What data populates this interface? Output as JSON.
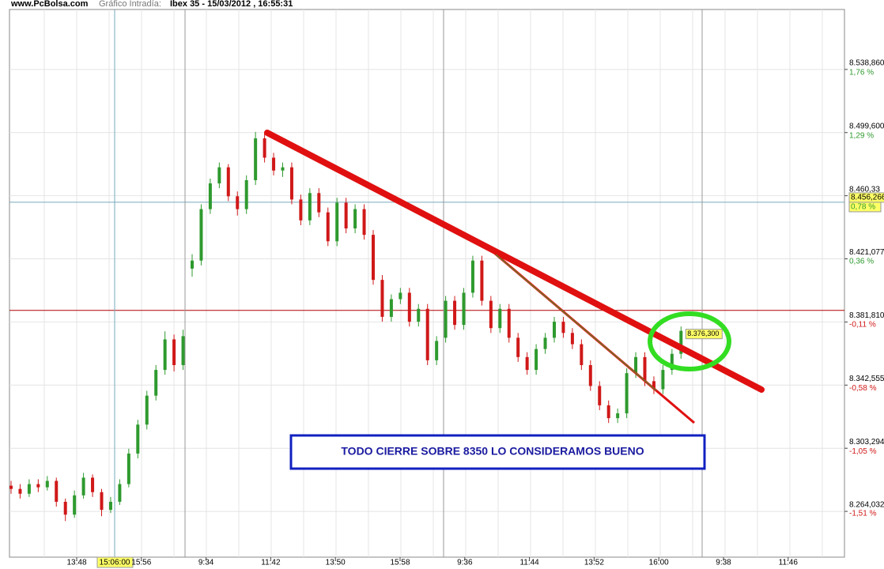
{
  "chart_data": {
    "type": "candlestick",
    "site": "www.PcBolsa.com",
    "subtitle": "Gráfico Intradía:",
    "title": "Ibex 35 - 15/03/2012 , 16:55:31",
    "annotation": "TODO CIERRE SOBRE 8350 LO CONSIDERAMOS BUENO",
    "categories": [
      "13:48",
      "15:56",
      "9:34",
      "11:42",
      "13:50",
      "15:58",
      "9:36",
      "11:44",
      "13:52",
      "16:00",
      "9:38",
      "11:46"
    ],
    "ohlc": [
      [
        8280,
        8283,
        8275,
        8278
      ],
      [
        8278,
        8281,
        8272,
        8275
      ],
      [
        8275,
        8284,
        8273,
        8281
      ],
      [
        8281,
        8284,
        8276,
        8279
      ],
      [
        8279,
        8286,
        8277,
        8283
      ],
      [
        8283,
        8285,
        8267,
        8270
      ],
      [
        8270,
        8272,
        8258,
        8262
      ],
      [
        8262,
        8277,
        8260,
        8274
      ],
      [
        8274,
        8288,
        8272,
        8285
      ],
      [
        8285,
        8287,
        8273,
        8276
      ],
      [
        8276,
        8278,
        8261,
        8265
      ],
      [
        8265,
        8273,
        8263,
        8270
      ],
      [
        8270,
        8284,
        8268,
        8281
      ],
      [
        8281,
        8303,
        8279,
        8300
      ],
      [
        8300,
        8321,
        8297,
        8318
      ],
      [
        8318,
        8339,
        8315,
        8336
      ],
      [
        8336,
        8355,
        8333,
        8352
      ],
      [
        8352,
        8376,
        8349,
        8371
      ],
      [
        8371,
        8374,
        8351,
        8355
      ],
      [
        8355,
        8377,
        8352,
        8373
      ],
      [
        8415,
        8424,
        8410,
        8420
      ],
      [
        8420,
        8455,
        8417,
        8452
      ],
      [
        8452,
        8471,
        8449,
        8468
      ],
      [
        8468,
        8481,
        8465,
        8478
      ],
      [
        8478,
        8480,
        8457,
        8460
      ],
      [
        8460,
        8463,
        8448,
        8452
      ],
      [
        8452,
        8473,
        8449,
        8470
      ],
      [
        8470,
        8500,
        8467,
        8496
      ],
      [
        8496,
        8499,
        8481,
        8484
      ],
      [
        8484,
        8487,
        8473,
        8476
      ],
      [
        8476,
        8481,
        8472,
        8478
      ],
      [
        8478,
        8481,
        8455,
        8458
      ],
      [
        8458,
        8461,
        8442,
        8445
      ],
      [
        8445,
        8465,
        8442,
        8462
      ],
      [
        8462,
        8465,
        8447,
        8450
      ],
      [
        8450,
        8453,
        8429,
        8432
      ],
      [
        8432,
        8459,
        8429,
        8456
      ],
      [
        8456,
        8459,
        8437,
        8440
      ],
      [
        8440,
        8455,
        8437,
        8452
      ],
      [
        8452,
        8455,
        8433,
        8436
      ],
      [
        8436,
        8439,
        8405,
        8408
      ],
      [
        8408,
        8411,
        8382,
        8385
      ],
      [
        8385,
        8399,
        8382,
        8396
      ],
      [
        8396,
        8403,
        8393,
        8400
      ],
      [
        8400,
        8403,
        8379,
        8382
      ],
      [
        8382,
        8393,
        8379,
        8390
      ],
      [
        8390,
        8393,
        8355,
        8358
      ],
      [
        8358,
        8373,
        8355,
        8370
      ],
      [
        8372,
        8398,
        8369,
        8395
      ],
      [
        8395,
        8398,
        8377,
        8380
      ],
      [
        8380,
        8403,
        8377,
        8400
      ],
      [
        8400,
        8423,
        8397,
        8420
      ],
      [
        8420,
        8423,
        8392,
        8395
      ],
      [
        8395,
        8398,
        8375,
        8378
      ],
      [
        8378,
        8393,
        8375,
        8390
      ],
      [
        8390,
        8393,
        8369,
        8372
      ],
      [
        8372,
        8375,
        8357,
        8360
      ],
      [
        8360,
        8363,
        8349,
        8352
      ],
      [
        8352,
        8368,
        8349,
        8365
      ],
      [
        8365,
        8375,
        8362,
        8372
      ],
      [
        8372,
        8385,
        8369,
        8382
      ],
      [
        8382,
        8385,
        8372,
        8375
      ],
      [
        8375,
        8378,
        8365,
        8368
      ],
      [
        8368,
        8371,
        8352,
        8355
      ],
      [
        8355,
        8358,
        8339,
        8342
      ],
      [
        8342,
        8345,
        8327,
        8330
      ],
      [
        8330,
        8333,
        8319,
        8322
      ],
      [
        8322,
        8328,
        8319,
        8325
      ],
      [
        8325,
        8353,
        8322,
        8350
      ],
      [
        8350,
        8363,
        8347,
        8360
      ],
      [
        8360,
        8363,
        8342,
        8345
      ],
      [
        8345,
        8348,
        8337,
        8340
      ],
      [
        8340,
        8355,
        8337,
        8352
      ],
      [
        8352,
        8365,
        8349,
        8362
      ],
      [
        8362,
        8379,
        8359,
        8376.3
      ]
    ],
    "up_color": "#2e9a2e",
    "down_color": "#d01818",
    "ylim": [
      8235.57,
      8576.15
    ],
    "yticks": [
      {
        "value": 8538.86,
        "label": "8.538,860"
      },
      {
        "value": 8499.6,
        "label": "8.499,600"
      },
      {
        "value": 8460.33,
        "label": "8.460,33"
      },
      {
        "value": 8421.077,
        "label": "8.421,077"
      },
      {
        "value": 8381.81,
        "label": "8.381,810"
      },
      {
        "value": 8342.555,
        "label": "8.342,555"
      },
      {
        "value": 8303.294,
        "label": "8.303,294"
      },
      {
        "value": 8264.032,
        "label": "8.264,032"
      }
    ],
    "y2lim": [
      -1.85,
      2.21
    ],
    "y2ticks": [
      {
        "value": 1.76,
        "label": "1,76 %"
      },
      {
        "value": 1.29,
        "label": "1,29 %"
      },
      {
        "value": 0.36,
        "label": "0,36 %"
      },
      {
        "value": -0.11,
        "label": "-0,11 %"
      },
      {
        "value": -0.58,
        "label": "-0,58 %"
      },
      {
        "value": -1.05,
        "label": "-1,05 %"
      },
      {
        "value": -1.51,
        "label": "-1,51 %"
      }
    ],
    "previous_close": 8389,
    "cursor": {
      "time": "15:06:00",
      "price": {
        "value": 8456.266,
        "label": "8.456,266"
      },
      "pct": {
        "value": 0.78,
        "label": "0,78 %"
      }
    },
    "last": {
      "value": 8376.3,
      "label": "8.376,300"
    }
  }
}
